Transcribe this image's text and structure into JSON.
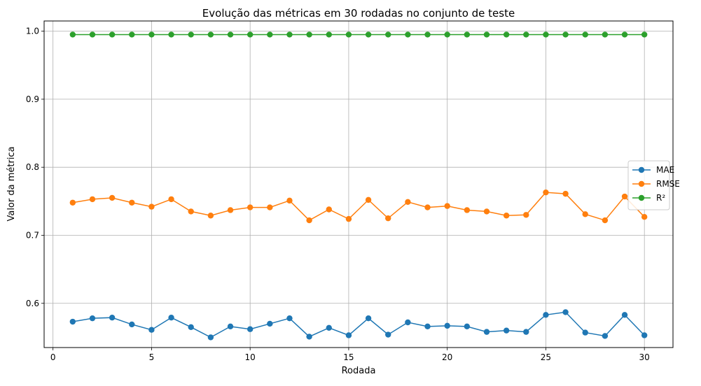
{
  "chart_data": {
    "type": "line",
    "title": "Evolução das métricas em 30 rodadas no conjunto de teste",
    "xlabel": "Rodada",
    "ylabel": "Valor da métrica",
    "xlim": [
      -0.45,
      31.45
    ],
    "ylim": [
      0.535,
      1.015
    ],
    "xticks": [
      0,
      5,
      10,
      15,
      20,
      25,
      30
    ],
    "xtick_labels": [
      "0",
      "5",
      "10",
      "15",
      "20",
      "25",
      "30"
    ],
    "yticks": [
      0.6,
      0.7,
      0.8,
      0.9,
      1.0
    ],
    "ytick_labels": [
      "0.6",
      "0.7",
      "0.8",
      "0.9",
      "1.0"
    ],
    "grid": true,
    "legend_position": "center-right",
    "x": [
      1,
      2,
      3,
      4,
      5,
      6,
      7,
      8,
      9,
      10,
      11,
      12,
      13,
      14,
      15,
      16,
      17,
      18,
      19,
      20,
      21,
      22,
      23,
      24,
      25,
      26,
      27,
      28,
      29,
      30
    ],
    "series": [
      {
        "name": "MAE",
        "color": "#1f77b4",
        "values": [
          0.573,
          0.578,
          0.579,
          0.569,
          0.561,
          0.579,
          0.565,
          0.55,
          0.566,
          0.562,
          0.57,
          0.578,
          0.551,
          0.564,
          0.553,
          0.578,
          0.554,
          0.572,
          0.566,
          0.567,
          0.566,
          0.558,
          0.56,
          0.558,
          0.583,
          0.587,
          0.557,
          0.552,
          0.583,
          0.553
        ]
      },
      {
        "name": "RMSE",
        "color": "#ff7f0e",
        "values": [
          0.748,
          0.753,
          0.755,
          0.748,
          0.742,
          0.753,
          0.735,
          0.729,
          0.737,
          0.741,
          0.741,
          0.751,
          0.722,
          0.738,
          0.724,
          0.752,
          0.725,
          0.749,
          0.741,
          0.743,
          0.737,
          0.735,
          0.729,
          0.73,
          0.763,
          0.761,
          0.731,
          0.722,
          0.757,
          0.727
        ]
      },
      {
        "name": "R²",
        "color": "#2ca02c",
        "values": [
          0.995,
          0.995,
          0.995,
          0.995,
          0.995,
          0.995,
          0.995,
          0.995,
          0.995,
          0.995,
          0.995,
          0.995,
          0.995,
          0.995,
          0.995,
          0.995,
          0.995,
          0.995,
          0.995,
          0.995,
          0.995,
          0.995,
          0.995,
          0.995,
          0.995,
          0.995,
          0.995,
          0.995,
          0.995,
          0.995
        ]
      }
    ]
  }
}
